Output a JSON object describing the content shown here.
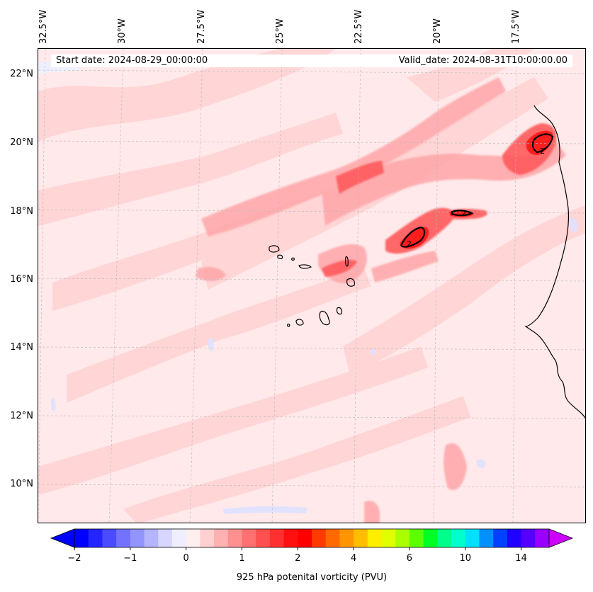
{
  "map": {
    "start_date": "Start date: 2024-08-29_00:00:00",
    "valid_date": "Valid_date: 2024-08-31T10:00:00.00",
    "lon_labels": [
      "32.5°W",
      "30°W",
      "27.5°W",
      "25°W",
      "22.5°W",
      "20°W",
      "17.5°W"
    ],
    "lat_labels": [
      "22°N",
      "20°N",
      "18°N",
      "16°N",
      "14°N",
      "12°N",
      "10°N"
    ],
    "extent": {
      "lon_min": -33.0,
      "lon_max": -15.7,
      "lat_min": 8.9,
      "lat_max": 22.8
    },
    "contour_label": "2",
    "background_color": "#ffe9ea"
  },
  "colorbar": {
    "label": "925 hPa potenital vorticity (PVU)",
    "tick_labels": [
      "−2",
      "−1",
      "0",
      "1",
      "2",
      "4",
      "6",
      "10",
      "14"
    ],
    "tick_values": [
      -2,
      -1,
      0,
      1,
      2,
      4,
      6,
      10,
      14
    ],
    "extend": "both",
    "colors": [
      "#0000ff",
      "#2424ff",
      "#4a4aff",
      "#7272ff",
      "#9494ff",
      "#b4b4ff",
      "#d6d6ff",
      "#eeeeff",
      "#ffeeee",
      "#ffd0d0",
      "#ffb0b0",
      "#ff9090",
      "#ff7070",
      "#ff5050",
      "#ff3030",
      "#ff1010",
      "#ff0000",
      "#ff3a00",
      "#ff6a00",
      "#ff9500",
      "#ffbf00",
      "#ffee00",
      "#e0ff00",
      "#aaff00",
      "#5cff00",
      "#00ff22",
      "#00ff88",
      "#00ffcc",
      "#00e0ff",
      "#0090ff",
      "#0040ff",
      "#2000ff",
      "#5500ff",
      "#9a00ff"
    ],
    "over_color": "#cc00ff",
    "under_color": "#0000ff"
  }
}
